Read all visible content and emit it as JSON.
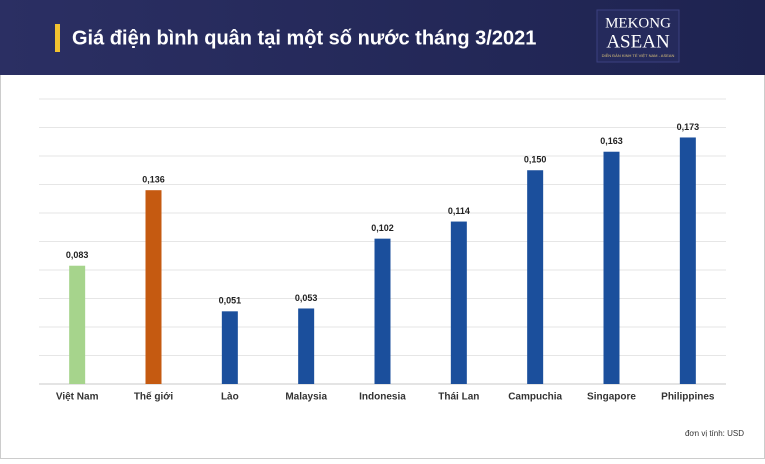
{
  "header": {
    "title": "Giá điện bình quân tại một số nước tháng 3/2021",
    "logo_top": "MEKONG",
    "logo_bottom": "ASEAN",
    "logo_tagline": "DIỄN ĐÀN KINH TẾ VIỆT NAM - ASEAN"
  },
  "chart_data": {
    "type": "bar",
    "categories": [
      "Việt Nam",
      "Thế giới",
      "Lào",
      "Malaysia",
      "Indonesia",
      "Thái Lan",
      "Campuchia",
      "Singapore",
      "Philippines"
    ],
    "values": [
      0.083,
      0.136,
      0.051,
      0.053,
      0.102,
      0.114,
      0.15,
      0.163,
      0.173
    ],
    "value_labels": [
      "0,083",
      "0,136",
      "0,051",
      "0,053",
      "0,102",
      "0,114",
      "0,150",
      "0,163",
      "0,173"
    ],
    "colors": [
      "#a6d48c",
      "#c55a11",
      "#1b4f9c",
      "#1b4f9c",
      "#1b4f9c",
      "#1b4f9c",
      "#1b4f9c",
      "#1b4f9c",
      "#1b4f9c"
    ],
    "ylim": [
      0,
      0.2
    ],
    "yticks": [
      0,
      0.02,
      0.04,
      0.06,
      0.08,
      0.1,
      0.12,
      0.14,
      0.16,
      0.18,
      0.2
    ],
    "grid": true,
    "note": "đơn vị tính: USD"
  }
}
